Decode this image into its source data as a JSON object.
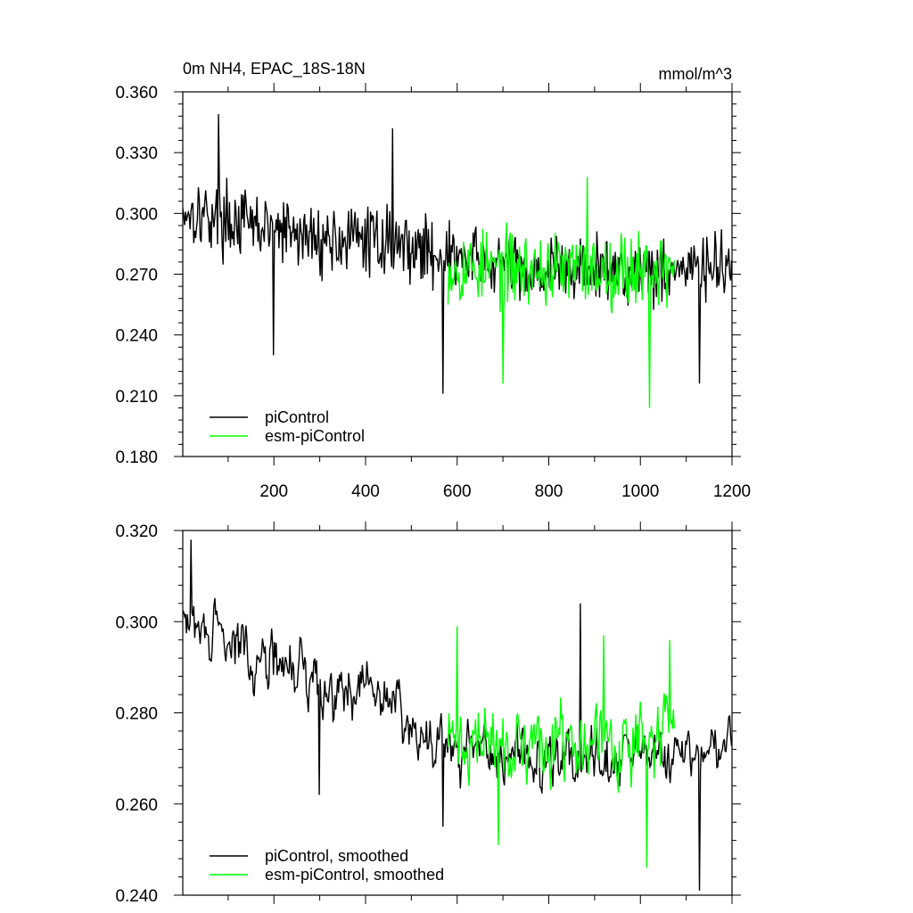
{
  "chart_data": [
    {
      "type": "line",
      "title": "0m NH4, EPAC_18S-18N",
      "units": "mmol/m^3",
      "xlabel": "",
      "ylabel": "",
      "xlim": [
        1,
        1200
      ],
      "ylim": [
        0.18,
        0.36
      ],
      "xticks": [
        200,
        400,
        600,
        800,
        1000,
        1200
      ],
      "xtick_labels": [
        "200",
        "400",
        "600",
        "800",
        "1000",
        "1200"
      ],
      "yticks": [
        0.18,
        0.21,
        0.24,
        0.27,
        0.3,
        0.33,
        0.36
      ],
      "ytick_labels": [
        "0.180",
        "0.210",
        "0.240",
        "0.270",
        "0.300",
        "0.330",
        "0.360"
      ],
      "legend_position": "bottom-left",
      "grid": false,
      "series": [
        {
          "name": "piControl",
          "color": "#000000",
          "x_range": [
            1,
            1200
          ],
          "mean_segments": [
            [
              1,
              0.302
            ],
            [
              150,
              0.294
            ],
            [
              300,
              0.287
            ],
            [
              450,
              0.287
            ],
            [
              570,
              0.279
            ],
            [
              750,
              0.272
            ],
            [
              950,
              0.272
            ],
            [
              1200,
              0.273
            ]
          ],
          "variability": 0.019,
          "extremes": [
            [
              80,
              0.349
            ],
            [
              200,
              0.23
            ],
            [
              460,
              0.342
            ],
            [
              570,
              0.211
            ],
            [
              1130,
              0.216
            ]
          ],
          "seed": 17
        },
        {
          "name": "esm-piControl",
          "color": "#00ff00",
          "x_range": [
            580,
            1075
          ],
          "mean_segments": [
            [
              580,
              0.274
            ],
            [
              800,
              0.272
            ],
            [
              1075,
              0.273
            ]
          ],
          "variability": 0.021,
          "extremes": [
            [
              700,
              0.216
            ],
            [
              885,
              0.318
            ],
            [
              1020,
              0.204
            ]
          ],
          "seed": 53
        }
      ]
    },
    {
      "type": "line",
      "title": "",
      "xlabel": "",
      "ylabel": "",
      "xlim": [
        1,
        1200
      ],
      "ylim": [
        0.24,
        0.32
      ],
      "yticks": [
        0.24,
        0.26,
        0.28,
        0.3,
        0.32
      ],
      "ytick_labels": [
        "0.240",
        "0.260",
        "0.280",
        "0.300",
        "0.320"
      ],
      "legend_position": "bottom-left",
      "grid": false,
      "series": [
        {
          "name": "piControl, smoothed",
          "color": "#000000",
          "x_range": [
            1,
            1200
          ],
          "mean_segments": [
            [
              1,
              0.3
            ],
            [
              150,
              0.293
            ],
            [
              300,
              0.287
            ],
            [
              450,
              0.284
            ],
            [
              570,
              0.272
            ],
            [
              750,
              0.27
            ],
            [
              950,
              0.27
            ],
            [
              1200,
              0.271
            ]
          ],
          "variability": 0.008,
          "extremes": [
            [
              20,
              0.318
            ],
            [
              300,
              0.262
            ],
            [
              570,
              0.255
            ],
            [
              870,
              0.304
            ],
            [
              1130,
              0.241
            ]
          ],
          "seed": 29
        },
        {
          "name": "esm-piControl, smoothed",
          "color": "#00ff00",
          "x_range": [
            580,
            1075
          ],
          "mean_segments": [
            [
              580,
              0.274
            ],
            [
              800,
              0.272
            ],
            [
              1075,
              0.274
            ]
          ],
          "variability": 0.011,
          "extremes": [
            [
              600,
              0.299
            ],
            [
              690,
              0.251
            ],
            [
              920,
              0.297
            ],
            [
              1015,
              0.246
            ],
            [
              1065,
              0.296
            ]
          ],
          "seed": 71
        }
      ]
    }
  ]
}
